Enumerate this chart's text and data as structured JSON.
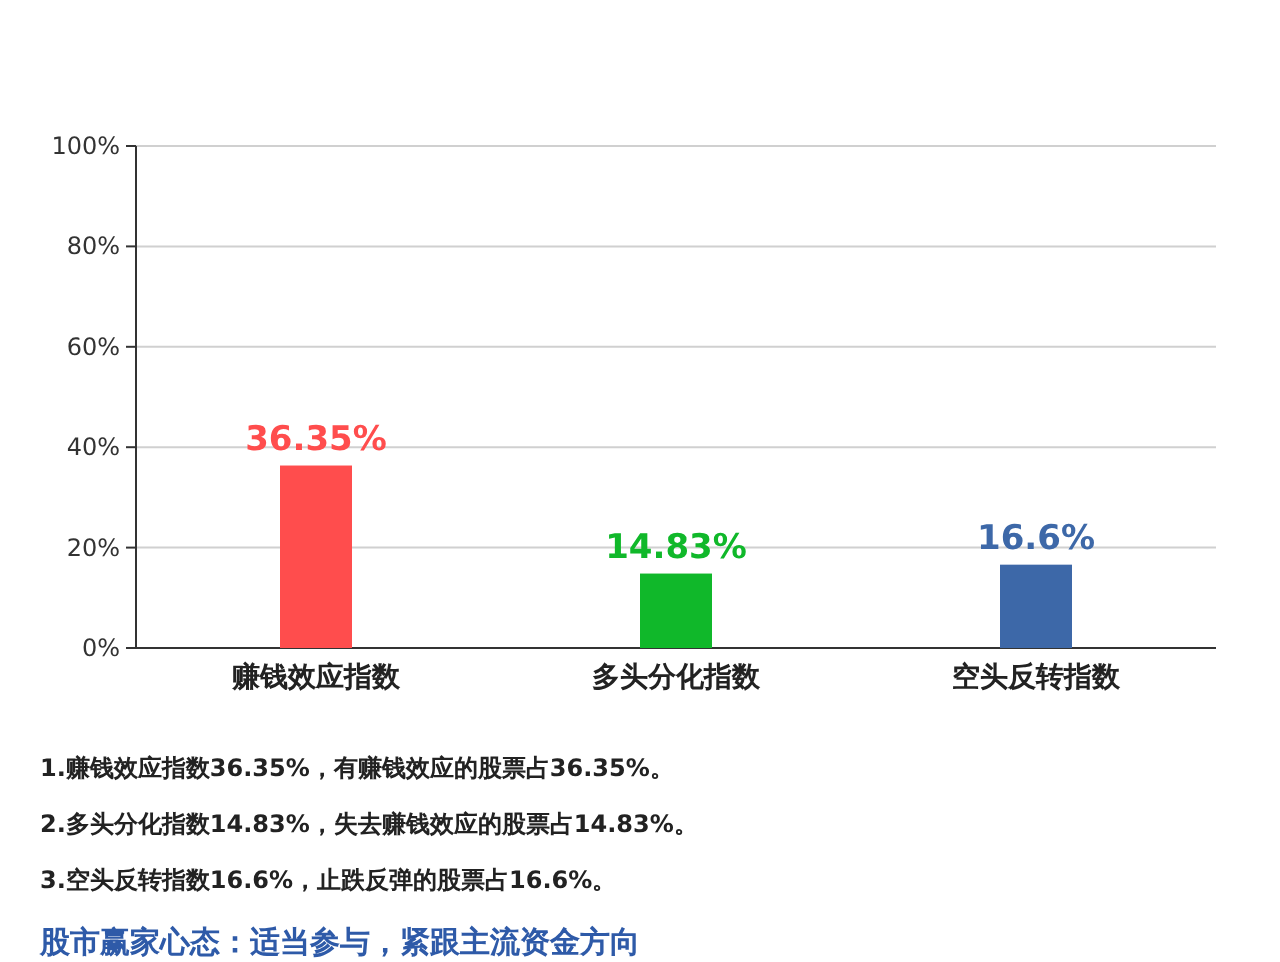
{
  "chart_data": {
    "type": "bar",
    "categories": [
      "赚钱效应指数",
      "多头分化指数",
      "空头反转指数"
    ],
    "values": [
      36.35,
      14.83,
      16.6
    ],
    "colors": [
      "#ff4d4d",
      "#10b82a",
      "#3d68a8"
    ],
    "value_labels": [
      "36.35%",
      "14.83%",
      "16.6%"
    ],
    "ylim": [
      0,
      100
    ],
    "yticks": [
      {
        "value": 0,
        "label": "0%"
      },
      {
        "value": 20,
        "label": "20%"
      },
      {
        "value": 40,
        "label": "40%"
      },
      {
        "value": 60,
        "label": "60%"
      },
      {
        "value": 80,
        "label": "80%"
      },
      {
        "value": 100,
        "label": "100%"
      }
    ],
    "grid": "y",
    "annotations": [
      "1.赚钱效应指数36.35%，有赚钱效应的股票占36.35%。",
      "2.多头分化指数14.83%，失去赚钱效应的股票占14.83%。",
      "3.空头反转指数16.6%，止跌反弹的股票占16.6%。",
      "股市赢家心态：适当参与，紧跟主流资金方向"
    ]
  }
}
